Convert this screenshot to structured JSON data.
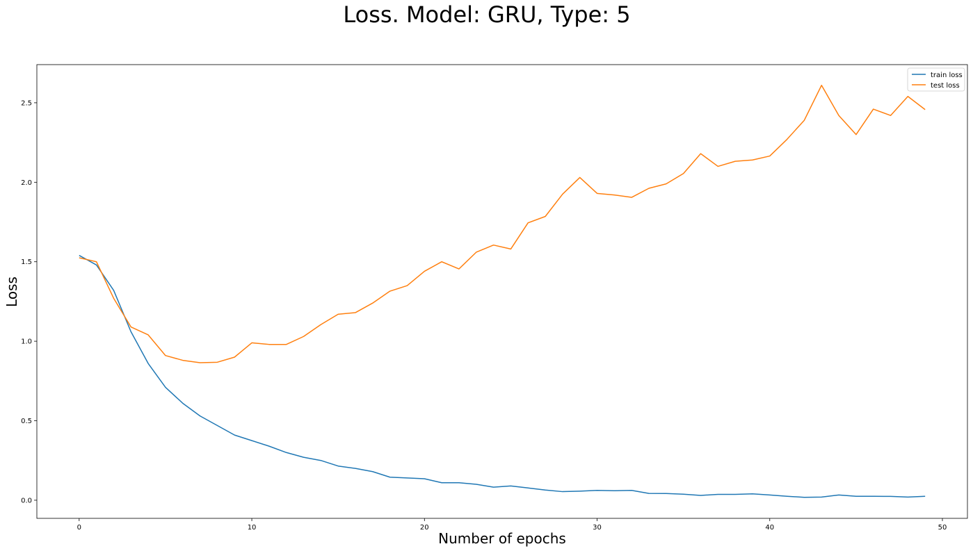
{
  "chart_data": {
    "type": "line",
    "title": "Loss. Model: GRU, Type: 5",
    "xlabel": "Number of epochs",
    "ylabel": "Loss",
    "xlim": [
      -2.45,
      51.45
    ],
    "ylim": [
      -0.114,
      2.74
    ],
    "xticks": [
      0,
      10,
      20,
      30,
      40,
      50
    ],
    "xtick_labels": [
      "0",
      "10",
      "20",
      "30",
      "40",
      "50"
    ],
    "yticks": [
      0.0,
      0.5,
      1.0,
      1.5,
      2.0,
      2.5
    ],
    "ytick_labels": [
      "0.0",
      "0.5",
      "1.0",
      "1.5",
      "2.0",
      "2.5"
    ],
    "grid": false,
    "legend_position": "top-right",
    "x": [
      0,
      1,
      2,
      3,
      4,
      5,
      6,
      7,
      8,
      9,
      10,
      11,
      12,
      13,
      14,
      15,
      16,
      17,
      18,
      19,
      20,
      21,
      22,
      23,
      24,
      25,
      26,
      27,
      28,
      29,
      30,
      31,
      32,
      33,
      34,
      35,
      36,
      37,
      38,
      39,
      40,
      41,
      42,
      43,
      44,
      45,
      46,
      47,
      48,
      49
    ],
    "series": [
      {
        "name": "train loss",
        "color": "#1f77b4",
        "values": [
          1.54,
          1.48,
          1.32,
          1.06,
          0.86,
          0.71,
          0.61,
          0.53,
          0.47,
          0.41,
          0.375,
          0.34,
          0.3,
          0.27,
          0.25,
          0.215,
          0.2,
          0.18,
          0.145,
          0.14,
          0.135,
          0.11,
          0.11,
          0.1,
          0.082,
          0.09,
          0.077,
          0.064,
          0.054,
          0.057,
          0.062,
          0.06,
          0.062,
          0.043,
          0.042,
          0.038,
          0.03,
          0.037,
          0.037,
          0.04,
          0.033,
          0.025,
          0.018,
          0.02,
          0.033,
          0.025,
          0.025,
          0.024,
          0.02,
          0.025
        ]
      },
      {
        "name": "test loss",
        "color": "#ff7f0e",
        "values": [
          1.525,
          1.5,
          1.27,
          1.09,
          1.04,
          0.91,
          0.88,
          0.865,
          0.868,
          0.9,
          0.99,
          0.98,
          0.98,
          1.03,
          1.105,
          1.17,
          1.18,
          1.24,
          1.315,
          1.35,
          1.44,
          1.5,
          1.455,
          1.56,
          1.605,
          1.58,
          1.745,
          1.785,
          1.925,
          2.03,
          1.93,
          1.92,
          1.905,
          1.962,
          1.99,
          2.055,
          2.18,
          2.1,
          2.132,
          2.14,
          2.165,
          2.27,
          2.39,
          2.61,
          2.42,
          2.3,
          2.46,
          2.42,
          2.54,
          2.457
        ]
      }
    ]
  }
}
